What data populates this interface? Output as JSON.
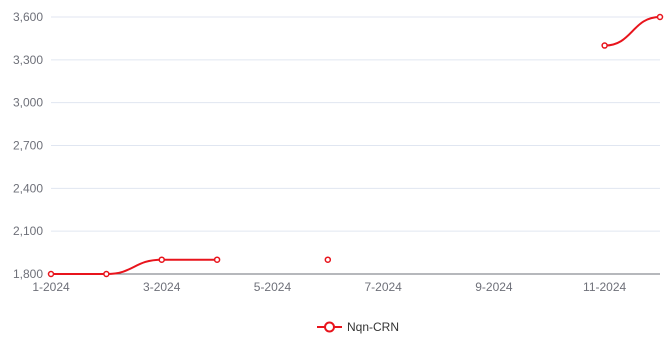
{
  "chart_data": {
    "type": "line",
    "x": [
      "1-2024",
      "2-2024",
      "3-2024",
      "4-2024",
      "5-2024",
      "6-2024",
      "7-2024",
      "8-2024",
      "9-2024",
      "10-2024",
      "11-2024",
      "12-2024"
    ],
    "x_tick_labels": [
      "1-2024",
      "3-2024",
      "5-2024",
      "7-2024",
      "9-2024",
      "11-2024"
    ],
    "series": [
      {
        "name": "Nqn-CRN",
        "color": "#e8141c",
        "values": [
          1800,
          1800,
          1900,
          1900,
          null,
          1900,
          null,
          null,
          null,
          null,
          3400,
          3600
        ]
      }
    ],
    "ylim": [
      1800,
      3600
    ],
    "y_ticks": [
      1800,
      2100,
      2400,
      2700,
      3000,
      3300,
      3600
    ],
    "y_tick_labels": [
      "1,800",
      "2,100",
      "2,400",
      "2,700",
      "3,000",
      "3,300",
      "3,600"
    ],
    "grid": "horizontal",
    "legend_position": "bottom-center",
    "smooth": true
  }
}
